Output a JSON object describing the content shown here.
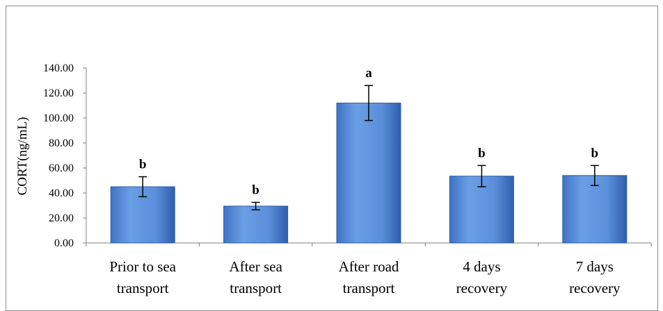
{
  "chart_data": {
    "type": "bar",
    "title": "",
    "xlabel": "",
    "ylabel": "CORT(ng/mL)",
    "ylim": [
      0,
      140
    ],
    "yticks": [
      "0.00",
      "20.00",
      "40.00",
      "60.00",
      "80.00",
      "100.00",
      "120.00",
      "140.00"
    ],
    "grid": false,
    "legend": "none",
    "categories": [
      [
        "Prior to sea",
        "transport"
      ],
      [
        "After sea",
        "transport"
      ],
      [
        "After road",
        "transport"
      ],
      [
        "4 days",
        "recovery"
      ],
      [
        "7 days",
        "recovery"
      ]
    ],
    "values": [
      45,
      29.5,
      112,
      53.5,
      54
    ],
    "error": [
      8,
      3,
      14,
      8.5,
      8
    ],
    "significance": [
      "b",
      "b",
      "a",
      "b",
      "b"
    ],
    "colors": {
      "bar": "#5b8fd9",
      "bar_edge": "#2e5da8",
      "axis": "#7f7f7f"
    }
  }
}
